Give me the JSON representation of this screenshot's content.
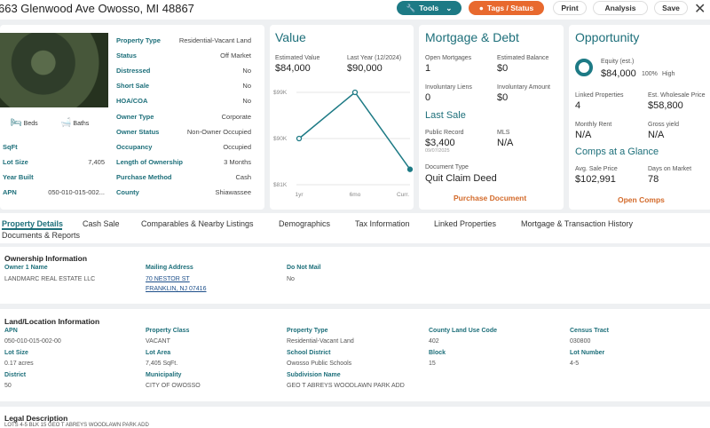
{
  "header": {
    "address": "663 Glenwood Ave Owosso, MI 48867",
    "tools_label": "Tools",
    "tags_label": "Tags / Status",
    "print_label": "Print",
    "analysis_label": "Analysis",
    "save_label": "Save"
  },
  "property": {
    "beds_label": "Beds",
    "baths_label": "Baths",
    "left_fields": [
      {
        "label": "SqFt",
        "value": ""
      },
      {
        "label": "Lot Size",
        "value": "7,405"
      },
      {
        "label": "Year Built",
        "value": ""
      },
      {
        "label": "APN",
        "value": "050-010-015-002..."
      }
    ],
    "right_fields": [
      {
        "label": "Property Type",
        "value": "Residential-Vacant Land"
      },
      {
        "label": "Status",
        "value": "Off Market"
      },
      {
        "label": "Distressed",
        "value": "No"
      },
      {
        "label": "Short Sale",
        "value": "No"
      },
      {
        "label": "HOA/COA",
        "value": "No"
      },
      {
        "label": "Owner Type",
        "value": "Corporate"
      },
      {
        "label": "Owner Status",
        "value": "Non-Owner Occupied"
      },
      {
        "label": "Occupancy",
        "value": "Occupied"
      },
      {
        "label": "Length of Ownership",
        "value": "3 Months"
      },
      {
        "label": "Purchase Method",
        "value": "Cash"
      },
      {
        "label": "County",
        "value": "Shiawassee"
      }
    ]
  },
  "value": {
    "title": "Value",
    "estimated_label": "Estimated Value",
    "estimated": "$84,000",
    "last_year_label": "Last Year (12/2024)",
    "last_year": "$90,000"
  },
  "chart_data": {
    "type": "line",
    "categories": [
      "1yr",
      "6mo",
      "Curr."
    ],
    "series": [
      {
        "values": [
          90000,
          99000,
          84000
        ]
      }
    ],
    "y_ticks": [
      "$99K",
      "$90K",
      "$81K"
    ],
    "ylim": [
      81000,
      99000
    ],
    "grid": true,
    "color": "#1d7a85"
  },
  "mortgage": {
    "title": "Mortgage & Debt",
    "open_label": "Open Mortgages",
    "open": "1",
    "balance_label": "Estimated Balance",
    "balance": "$0",
    "liens_label": "Involuntary Liens",
    "liens": "0",
    "amount_label": "Involuntary Amount",
    "amount": "$0",
    "last_sale_title": "Last Sale",
    "public_label": "Public Record",
    "public": "$3,400",
    "public_date": "09/07/2025",
    "mls_label": "MLS",
    "mls": "N/A",
    "doc_label": "Document Type",
    "doc": "Quit Claim Deed",
    "purchase_doc": "Purchase Document"
  },
  "opportunity": {
    "title": "Opportunity",
    "equity_label": "Equity (est.)",
    "equity": "$84,000",
    "equity_pct": "100%",
    "equity_level": "High",
    "linked_label": "Linked Properties",
    "linked": "4",
    "wholesale_label": "Est. Wholesale Price",
    "wholesale": "$58,800",
    "rent_label": "Monthly Rent",
    "rent": "N/A",
    "yield_label": "Gross yield",
    "yield": "N/A",
    "comps_title": "Comps at a Glance",
    "avg_label": "Avg. Sale Price",
    "avg": "$102,991",
    "days_label": "Days on Market",
    "days": "78",
    "open_comps": "Open Comps"
  },
  "tabs": [
    "Property Details",
    "Cash Sale",
    "Comparables & Nearby Listings",
    "Demographics",
    "Tax Information",
    "Linked Properties",
    "Mortgage & Transaction History",
    "Documents & Reports"
  ],
  "ownership": {
    "title": "Ownership Information",
    "owner_label": "Owner 1 Name",
    "owner": "LANDMARC REAL ESTATE LLC",
    "mailing_label": "Mailing Address",
    "mailing1": "70 NESTOR ST",
    "mailing2": "FRANKLIN, NJ 07416",
    "dnm_label": "Do Not Mail",
    "dnm": "No"
  },
  "land": {
    "title": "Land/Location Information",
    "fields": [
      {
        "label": "APN",
        "value": "050-010-015-002-00"
      },
      {
        "label": "Property Class",
        "value": "VACANT"
      },
      {
        "label": "Property Type",
        "value": "Residential-Vacant Land"
      },
      {
        "label": "County Land Use Code",
        "value": "402"
      },
      {
        "label": "Census Tract",
        "value": "030800"
      },
      {
        "label": "Lot Size",
        "value": "0.17 acres"
      },
      {
        "label": "Lot Area",
        "value": "7,405 SqFt."
      },
      {
        "label": "School District",
        "value": "Owosso Public Schools"
      },
      {
        "label": "Block",
        "value": "15"
      },
      {
        "label": "Lot Number",
        "value": "4-5"
      },
      {
        "label": "District",
        "value": "50"
      },
      {
        "label": "Municipality",
        "value": "CITY OF OWOSSO"
      },
      {
        "label": "Subdivision Name",
        "value": "GEO T ABREYS WOODLAWN PARK ADD"
      }
    ]
  },
  "legal": {
    "title": "Legal Description",
    "text": "LOTS 4-5 BLK 15 GEO T ABREYS WOODLAWN PARK ADD"
  }
}
